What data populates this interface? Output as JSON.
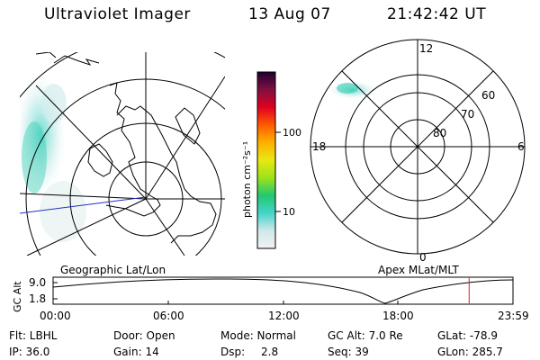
{
  "header": {
    "instrument": "Ultraviolet Imager",
    "date": "13 Aug 07",
    "time": "21:42:42 UT"
  },
  "colorbar": {
    "unit_label": "photon cm⁻²s⁻¹",
    "ticks": [
      "100",
      "10"
    ]
  },
  "polar_plot": {
    "mlt_labels": {
      "top": "12",
      "bottom": "0",
      "left": "18",
      "right": "6"
    },
    "mlat_labels": [
      "60",
      "70",
      "80"
    ],
    "caption": "Apex MLat/MLT"
  },
  "geo_plot": {
    "caption": "Geographic Lat/Lon"
  },
  "timeline": {
    "ylabel": "GC Alt",
    "yticks": [
      "9.0",
      "1.8"
    ],
    "xticks": [
      "00:00",
      "06:00",
      "12:00",
      "18:00",
      "23:59"
    ],
    "current_time_fraction": 0.9046
  },
  "info": {
    "filter": "Flt: LBHL",
    "ip": "IP: 36.0",
    "door": "Door: Open",
    "gain": "Gain: 14",
    "mode": "Mode: Normal",
    "dsp_label": "Dsp:",
    "dsp_value": "2.8",
    "gc_alt": "GC Alt: 7.0 Re",
    "seq": "Seq: 39",
    "glat": "GLat: -78.9",
    "glon": "GLon: 285.7"
  },
  "colors": {
    "timeline_marker": "#d02020",
    "track_line": "#2030c0"
  }
}
